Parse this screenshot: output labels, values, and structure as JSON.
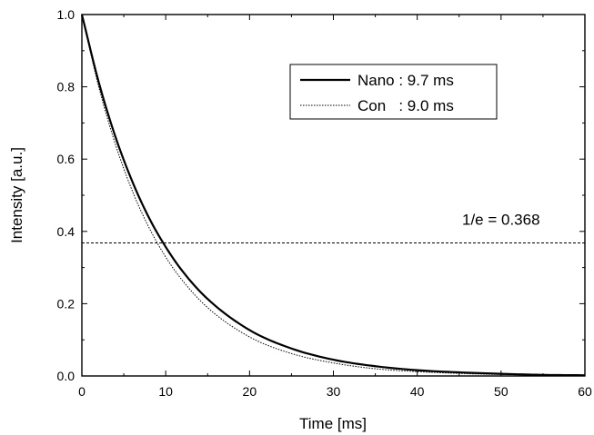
{
  "chart_data": {
    "type": "line",
    "xlabel": "Time [ms]",
    "ylabel": "Intensity [a.u.]",
    "xlim": [
      0,
      60
    ],
    "ylim": [
      0,
      1.0
    ],
    "x_ticks": [
      0,
      10,
      20,
      30,
      40,
      50,
      60
    ],
    "y_ticks": [
      0.0,
      0.2,
      0.4,
      0.6,
      0.8,
      1.0
    ],
    "x_tick_labels": [
      "0",
      "10",
      "20",
      "30",
      "40",
      "50",
      "60"
    ],
    "y_tick_labels": [
      "0.0",
      "0.2",
      "0.4",
      "0.6",
      "0.8",
      "1.0"
    ],
    "grid": false,
    "legend_position": "top-right",
    "series": [
      {
        "name": "Nano : 9.7 ms",
        "style": "solid",
        "x": [
          0,
          2,
          4,
          6,
          8,
          10,
          12,
          15,
          20,
          25,
          30,
          35,
          40,
          45,
          50,
          55,
          60
        ],
        "y": [
          1.0,
          0.814,
          0.662,
          0.539,
          0.438,
          0.357,
          0.29,
          0.213,
          0.127,
          0.076,
          0.045,
          0.027,
          0.016,
          0.01,
          0.006,
          0.003,
          0.002
        ]
      },
      {
        "name": "Con   : 9.0 ms",
        "style": "dotted",
        "x": [
          0,
          2,
          4,
          6,
          8,
          10,
          12,
          15,
          20,
          25,
          30,
          35,
          40,
          45,
          50,
          55,
          60
        ],
        "y": [
          1.0,
          0.801,
          0.641,
          0.513,
          0.411,
          0.329,
          0.264,
          0.189,
          0.108,
          0.062,
          0.036,
          0.02,
          0.012,
          0.007,
          0.004,
          0.002,
          0.001
        ]
      }
    ],
    "reference_line": {
      "y": 0.368,
      "label": "1/e = 0.368",
      "style": "dashed"
    }
  }
}
